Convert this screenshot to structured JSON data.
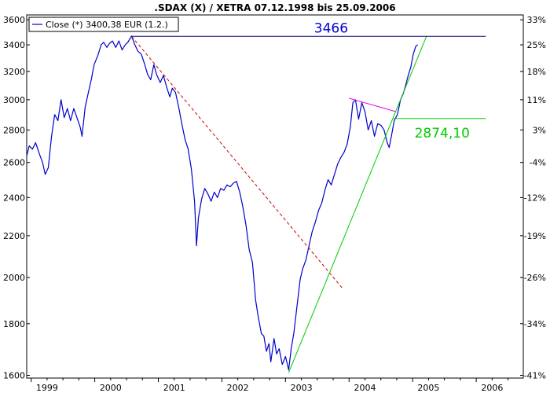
{
  "chart_data": {
    "type": "line",
    "title": ".SDAX (X) / XETRA 07.12.1998 bis 25.09.2006",
    "legend": {
      "label": "Close (*) 3400,38 EUR (1.2.)",
      "position": "top-left"
    },
    "x_axis": {
      "ticks": [
        "1999",
        "2000",
        "2001",
        "2002",
        "2003",
        "2004",
        "2005",
        "2006"
      ],
      "range": [
        1998.93,
        2006.74
      ]
    },
    "y_axis_left": {
      "scale": "log",
      "range": [
        1590,
        3640
      ],
      "ticks": [
        1600,
        1800,
        2000,
        2200,
        2400,
        2600,
        2800,
        3000,
        3200,
        3400,
        3600
      ]
    },
    "y_axis_right": {
      "ticks": [
        "33%",
        "25%",
        "18%",
        "11%",
        "3%",
        "-4%",
        "-12%",
        "-19%",
        "-26%",
        "-34%",
        "-41%"
      ]
    },
    "grid": false,
    "series": [
      {
        "name": "Close (*) 3400,38 EUR (1.2.)",
        "color": "#0000cc",
        "points": [
          [
            1998.93,
            2640
          ],
          [
            1998.97,
            2700
          ],
          [
            1999.02,
            2680
          ],
          [
            1999.07,
            2720
          ],
          [
            1999.13,
            2650
          ],
          [
            1999.18,
            2600
          ],
          [
            1999.22,
            2530
          ],
          [
            1999.27,
            2570
          ],
          [
            1999.32,
            2760
          ],
          [
            1999.37,
            2900
          ],
          [
            1999.42,
            2860
          ],
          [
            1999.47,
            3000
          ],
          [
            1999.52,
            2880
          ],
          [
            1999.57,
            2940
          ],
          [
            1999.62,
            2860
          ],
          [
            1999.67,
            2940
          ],
          [
            1999.72,
            2880
          ],
          [
            1999.77,
            2820
          ],
          [
            1999.8,
            2760
          ],
          [
            1999.85,
            2950
          ],
          [
            1999.9,
            3050
          ],
          [
            1999.95,
            3150
          ],
          [
            1999.99,
            3250
          ],
          [
            2000.05,
            3320
          ],
          [
            2000.1,
            3400
          ],
          [
            2000.14,
            3420
          ],
          [
            2000.19,
            3380
          ],
          [
            2000.23,
            3410
          ],
          [
            2000.28,
            3430
          ],
          [
            2000.33,
            3380
          ],
          [
            2000.38,
            3430
          ],
          [
            2000.43,
            3360
          ],
          [
            2000.48,
            3400
          ],
          [
            2000.52,
            3420
          ],
          [
            2000.58,
            3470
          ],
          [
            2000.63,
            3400
          ],
          [
            2000.68,
            3350
          ],
          [
            2000.73,
            3330
          ],
          [
            2000.78,
            3260
          ],
          [
            2000.83,
            3180
          ],
          [
            2000.88,
            3140
          ],
          [
            2000.93,
            3250
          ],
          [
            2000.97,
            3180
          ],
          [
            2001.03,
            3120
          ],
          [
            2001.08,
            3170
          ],
          [
            2001.13,
            3090
          ],
          [
            2001.18,
            3020
          ],
          [
            2001.22,
            3080
          ],
          [
            2001.27,
            3050
          ],
          [
            2001.32,
            2950
          ],
          [
            2001.37,
            2840
          ],
          [
            2001.42,
            2740
          ],
          [
            2001.47,
            2680
          ],
          [
            2001.52,
            2560
          ],
          [
            2001.57,
            2380
          ],
          [
            2001.6,
            2150
          ],
          [
            2001.63,
            2290
          ],
          [
            2001.68,
            2390
          ],
          [
            2001.73,
            2450
          ],
          [
            2001.78,
            2420
          ],
          [
            2001.83,
            2380
          ],
          [
            2001.88,
            2430
          ],
          [
            2001.93,
            2400
          ],
          [
            2001.98,
            2450
          ],
          [
            2002.03,
            2440
          ],
          [
            2002.08,
            2470
          ],
          [
            2002.13,
            2460
          ],
          [
            2002.18,
            2480
          ],
          [
            2002.23,
            2490
          ],
          [
            2002.28,
            2430
          ],
          [
            2002.33,
            2350
          ],
          [
            2002.38,
            2250
          ],
          [
            2002.43,
            2130
          ],
          [
            2002.48,
            2070
          ],
          [
            2002.53,
            1900
          ],
          [
            2002.57,
            1830
          ],
          [
            2002.62,
            1760
          ],
          [
            2002.66,
            1750
          ],
          [
            2002.7,
            1690
          ],
          [
            2002.74,
            1720
          ],
          [
            2002.77,
            1650
          ],
          [
            2002.82,
            1740
          ],
          [
            2002.86,
            1680
          ],
          [
            2002.9,
            1700
          ],
          [
            2002.95,
            1640
          ],
          [
            2003.0,
            1670
          ],
          [
            2003.05,
            1620
          ],
          [
            2003.09,
            1700
          ],
          [
            2003.13,
            1760
          ],
          [
            2003.18,
            1870
          ],
          [
            2003.23,
            1990
          ],
          [
            2003.27,
            2040
          ],
          [
            2003.32,
            2080
          ],
          [
            2003.37,
            2150
          ],
          [
            2003.42,
            2220
          ],
          [
            2003.47,
            2270
          ],
          [
            2003.52,
            2330
          ],
          [
            2003.57,
            2370
          ],
          [
            2003.62,
            2440
          ],
          [
            2003.67,
            2500
          ],
          [
            2003.72,
            2470
          ],
          [
            2003.77,
            2530
          ],
          [
            2003.82,
            2590
          ],
          [
            2003.87,
            2630
          ],
          [
            2003.92,
            2660
          ],
          [
            2003.97,
            2710
          ],
          [
            2004.02,
            2820
          ],
          [
            2004.06,
            2980
          ],
          [
            2004.1,
            3000
          ],
          [
            2004.15,
            2870
          ],
          [
            2004.2,
            2980
          ],
          [
            2004.25,
            2920
          ],
          [
            2004.3,
            2800
          ],
          [
            2004.35,
            2860
          ],
          [
            2004.4,
            2760
          ],
          [
            2004.45,
            2840
          ],
          [
            2004.5,
            2830
          ],
          [
            2004.55,
            2800
          ],
          [
            2004.6,
            2720
          ],
          [
            2004.63,
            2690
          ],
          [
            2004.67,
            2770
          ],
          [
            2004.71,
            2860
          ],
          [
            2004.76,
            2900
          ],
          [
            2004.81,
            3000
          ],
          [
            2004.85,
            3040
          ],
          [
            2004.89,
            3100
          ],
          [
            2004.93,
            3170
          ],
          [
            2004.97,
            3230
          ],
          [
            2005.01,
            3330
          ],
          [
            2005.05,
            3390
          ],
          [
            2005.08,
            3400
          ]
        ]
      },
      {
        "name": "",
        "style": "dashed",
        "color": "#cc0000",
        "points": [
          [
            2000.58,
            3466
          ],
          [
            2003.9,
            1950
          ]
        ]
      },
      {
        "name": "",
        "color": "#00cc00",
        "points": [
          [
            2003.05,
            1610
          ],
          [
            2005.22,
            3470
          ]
        ]
      },
      {
        "name": "",
        "color": "#ee00ee",
        "points": [
          [
            2004.0,
            3010
          ],
          [
            2004.73,
            2920
          ]
        ]
      },
      {
        "name": "",
        "color": "#000080",
        "points": [
          [
            2000.58,
            3466
          ],
          [
            2006.15,
            3466
          ]
        ]
      },
      {
        "name": "",
        "color": "#00cc00",
        "points": [
          [
            2004.7,
            2874.1
          ],
          [
            2006.15,
            2874.1
          ]
        ]
      }
    ],
    "annotations": [
      {
        "text": "3466",
        "x": 2003.45,
        "y": 3466,
        "color": "#0000cc"
      },
      {
        "text": "2874,10",
        "x": 2005.03,
        "y": 2874.1,
        "color": "#00cc00"
      }
    ]
  }
}
